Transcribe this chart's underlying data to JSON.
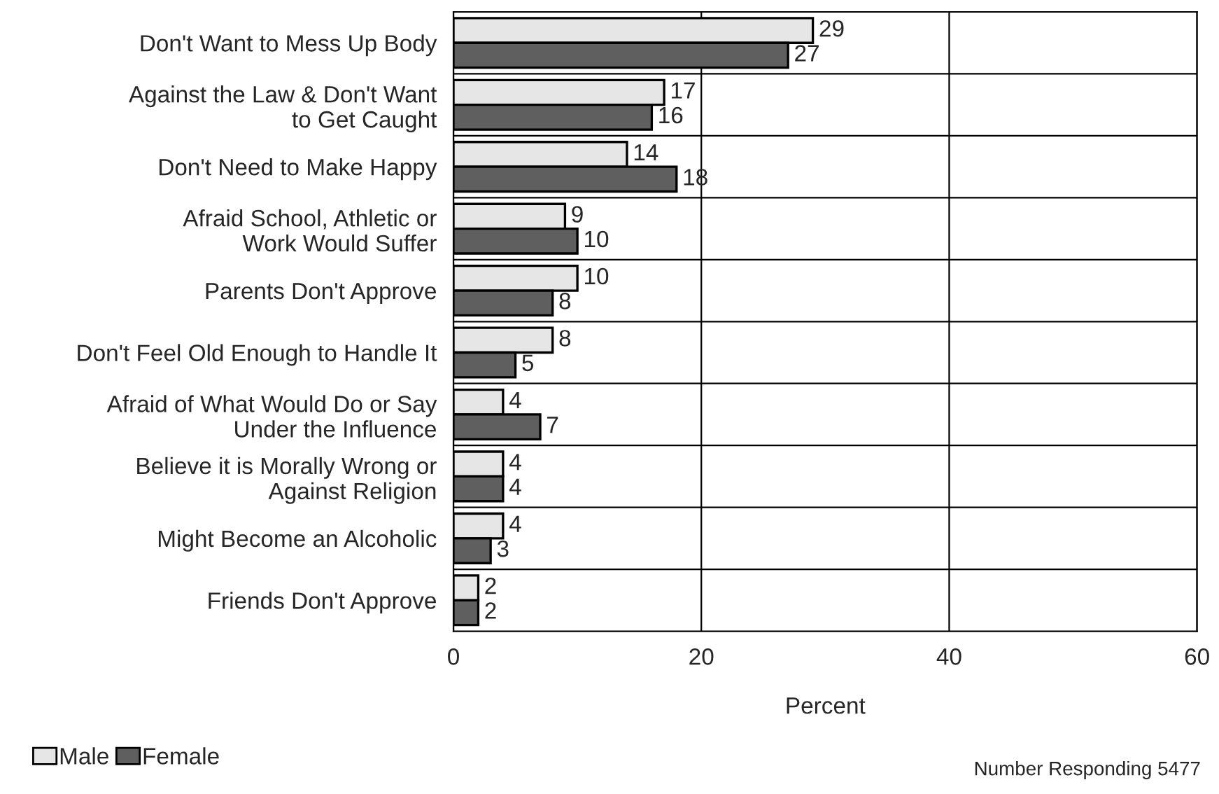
{
  "chart_data": {
    "type": "bar",
    "orientation": "horizontal",
    "categories": [
      "Don't Want to Mess Up Body",
      "Against the Law & Don't Want\nto Get Caught",
      "Don't Need to Make Happy",
      "Afraid School, Athletic or\nWork Would Suffer",
      "Parents Don't Approve",
      "Don't Feel Old Enough to Handle It",
      "Afraid of What Would Do or Say\nUnder the Influence",
      "Believe it is Morally Wrong or\nAgainst Religion",
      "Might Become an Alcoholic",
      "Friends Don't Approve"
    ],
    "series": [
      {
        "name": "Male",
        "color": "#e6e6e6",
        "values": [
          29,
          17,
          14,
          9,
          10,
          8,
          4,
          4,
          4,
          2
        ]
      },
      {
        "name": "Female",
        "color": "#5f5f5f",
        "values": [
          27,
          16,
          18,
          10,
          8,
          5,
          7,
          4,
          3,
          2
        ]
      }
    ],
    "xlabel": "Percent",
    "xlim": [
      0,
      60
    ],
    "xticks": [
      0,
      20,
      40,
      60
    ],
    "grid": "x",
    "legend": "bottom left",
    "data_labels": true,
    "annotations": [
      "Number Responding 5477"
    ]
  }
}
